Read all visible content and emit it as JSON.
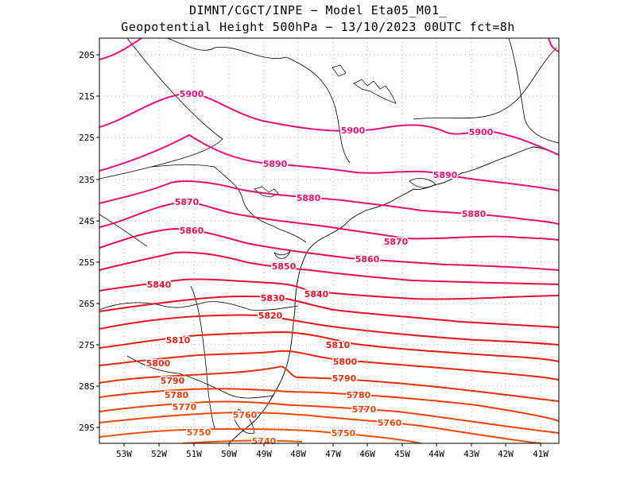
{
  "title": {
    "line1": "DIMNT/CGCT/INPE −  Model Eta05_M01_",
    "line2": "Geopotential Height 500hPa −  13/10/2023 00UTC fct=8h"
  },
  "axes": {
    "lat_ticks": [
      "20S",
      "21S",
      "22S",
      "23S",
      "24S",
      "25S",
      "26S",
      "27S",
      "28S",
      "29S"
    ],
    "lon_ticks": [
      "53W",
      "52W",
      "51W",
      "50W",
      "49W",
      "48W",
      "47W",
      "46W",
      "45W",
      "44W",
      "43W",
      "42W",
      "41W"
    ]
  },
  "contour_colors": {
    "5900": "#e8107c",
    "5890": "#e8107c",
    "5880": "#e8106e",
    "5870": "#e8105e",
    "5860": "#e81050",
    "5850": "#e81040",
    "5840": "#e81030",
    "5830": "#e81020",
    "5820": "#e81818",
    "5810": "#e81c10",
    "5800": "#e82810",
    "5790": "#e83008",
    "5780": "#f03808",
    "5770": "#f04008",
    "5760": "#f04808",
    "5750": "#f05008",
    "5740": "#f05808"
  },
  "contour_labels": [
    {
      "text": "5900"
    },
    {
      "text": "5900"
    },
    {
      "text": "5900"
    },
    {
      "text": "5890"
    },
    {
      "text": "5890"
    },
    {
      "text": "5880"
    },
    {
      "text": "5880"
    },
    {
      "text": "5870"
    },
    {
      "text": "5870"
    },
    {
      "text": "5860"
    },
    {
      "text": "5860"
    },
    {
      "text": "5850"
    },
    {
      "text": "5840"
    },
    {
      "text": "5840"
    },
    {
      "text": "5830"
    },
    {
      "text": "5820"
    },
    {
      "text": "5810"
    },
    {
      "text": "5810"
    },
    {
      "text": "5800"
    },
    {
      "text": "5800"
    },
    {
      "text": "5790"
    },
    {
      "text": "5790"
    },
    {
      "text": "5780"
    },
    {
      "text": "5780"
    },
    {
      "text": "5770"
    },
    {
      "text": "5770"
    },
    {
      "text": "5760"
    },
    {
      "text": "5760"
    },
    {
      "text": "5750"
    },
    {
      "text": "5750"
    },
    {
      "text": "5740"
    }
  ]
}
